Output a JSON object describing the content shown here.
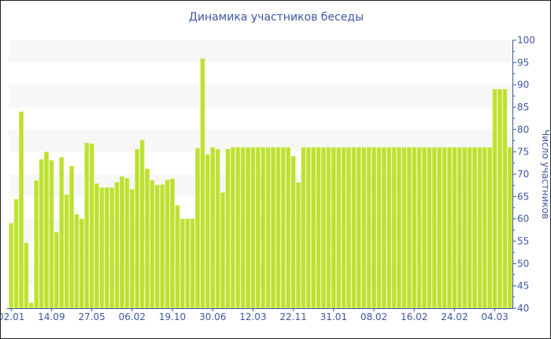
{
  "chart_data": {
    "type": "bar",
    "title": "Динамика участников беседы",
    "ylabel": "Число участников",
    "xlabel": "",
    "ylim": [
      40,
      100
    ],
    "y_ticks": [
      40,
      45,
      50,
      55,
      60,
      65,
      70,
      75,
      80,
      85,
      90,
      95,
      100
    ],
    "y_axis_side": "right",
    "grid": "alternating horizontal bands",
    "legend": "none",
    "bar_color": "#bde032",
    "axis_color": "#3f57a2",
    "x_tick_labels": [
      {
        "index": 0,
        "label": "02.01"
      },
      {
        "index": 8,
        "label": "14.09"
      },
      {
        "index": 16,
        "label": "27.05"
      },
      {
        "index": 24,
        "label": "06.02"
      },
      {
        "index": 32,
        "label": "19.10"
      },
      {
        "index": 40,
        "label": "30.06"
      },
      {
        "index": 48,
        "label": "12.03"
      },
      {
        "index": 56,
        "label": "22.11"
      },
      {
        "index": 64,
        "label": "31.01"
      },
      {
        "index": 72,
        "label": "08.02"
      },
      {
        "index": 80,
        "label": "16.02"
      },
      {
        "index": 88,
        "label": "24.02"
      },
      {
        "index": 96,
        "label": "04.03"
      }
    ],
    "values": [
      59,
      64.4,
      84,
      54.6,
      41.2,
      68.6,
      73.3,
      75,
      73.1,
      57,
      73.8,
      65.4,
      71.8,
      61,
      60,
      77,
      76.8,
      67.9,
      67,
      67,
      67,
      68.2,
      69.5,
      69.1,
      66.6,
      75.6,
      77.6,
      71.2,
      68.6,
      67.6,
      67.7,
      68.7,
      69,
      63,
      60,
      60,
      60,
      75.8,
      95.9,
      74.4,
      76,
      75.6,
      65.9,
      75.6,
      76,
      76,
      76,
      76,
      76,
      76,
      76,
      76,
      76,
      76,
      76,
      76,
      74,
      68.1,
      76,
      76,
      76,
      76,
      76,
      76,
      76,
      76,
      76,
      76,
      76,
      76,
      76,
      76,
      76,
      76,
      76,
      76,
      76,
      76,
      76,
      76,
      76,
      76,
      76,
      76,
      76,
      76,
      76,
      76,
      76,
      76,
      76,
      76,
      76,
      76,
      76,
      76,
      89,
      89,
      89,
      76
    ]
  }
}
